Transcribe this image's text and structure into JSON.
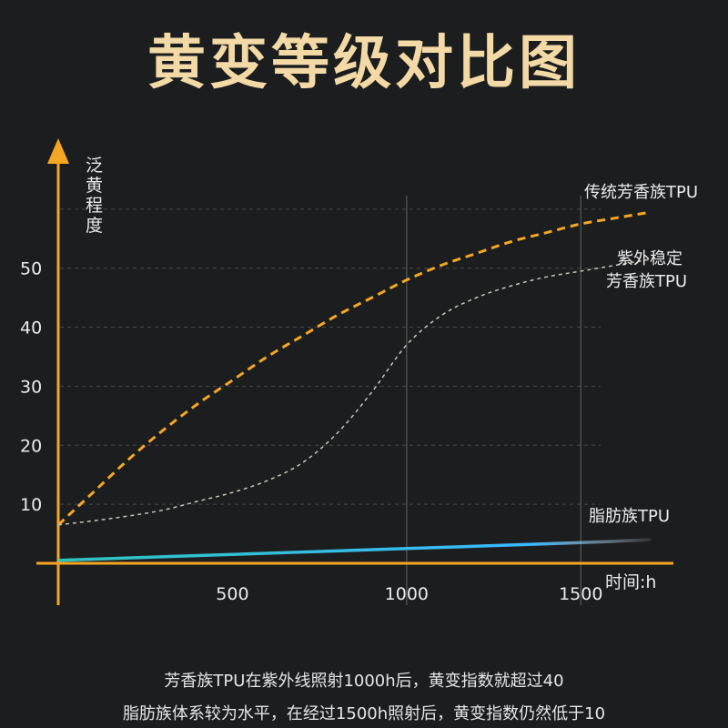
{
  "title": "黄变等级对比图",
  "chart_data": {
    "type": "line",
    "ylabel": "泛黄程度",
    "xlabel": "时间:h",
    "x_ticks": [
      500,
      1000,
      1500
    ],
    "y_ticks": [
      10,
      20,
      30,
      40,
      50
    ],
    "xlim": [
      0,
      1750
    ],
    "ylim": [
      0,
      72
    ],
    "series": [
      {
        "name": "传统芳香族TPU",
        "color": "#f5a623",
        "style": "dashed",
        "x": [
          0,
          100,
          200,
          300,
          400,
          500,
          600,
          700,
          800,
          900,
          1000,
          1100,
          1200,
          1300,
          1400,
          1500,
          1600,
          1700
        ],
        "y": [
          6.5,
          12,
          17.5,
          22.5,
          27,
          31,
          35,
          38.5,
          42,
          45,
          48,
          50.5,
          52.5,
          54.5,
          56,
          57.5,
          58.5,
          59.5
        ]
      },
      {
        "name": "紫外稳定芳香族TPU",
        "color": "#c9c3b8",
        "style": "dashed",
        "x": [
          0,
          100,
          200,
          300,
          400,
          500,
          600,
          700,
          800,
          900,
          1000,
          1100,
          1200,
          1300,
          1400,
          1500,
          1600,
          1700
        ],
        "y": [
          6.5,
          7.2,
          8,
          9,
          10.5,
          12,
          14,
          17,
          22,
          29,
          37,
          42,
          45,
          47,
          48.5,
          49.5,
          50.5,
          51.5
        ]
      },
      {
        "name": "脂肪族TPU",
        "color": "#2fd6d0",
        "style": "solid",
        "x": [
          0,
          500,
          1000,
          1500,
          1700
        ],
        "y": [
          0.5,
          1.5,
          2.5,
          3.5,
          4
        ]
      }
    ]
  },
  "captions": [
    "芳香族TPU在紫外线照射1000h后，黄变指数就超过40",
    "脂肪族体系较为水平，在经过1500h照射后，黄变指数仍然低于10"
  ],
  "colors": {
    "background": "#1c1d1f",
    "title": "#f2d9a5",
    "axis": "#f5a623",
    "grid": "#555555"
  }
}
